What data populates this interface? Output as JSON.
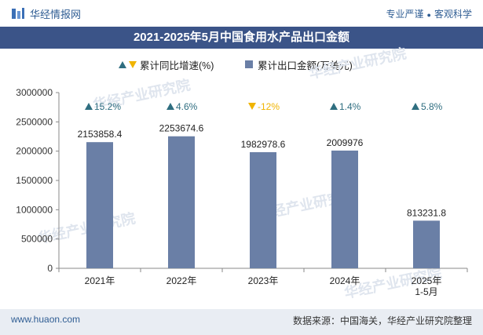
{
  "header": {
    "brand": "华经情报网",
    "slogan_left": "专业严谨",
    "slogan_right": "客观科学"
  },
  "footer": {
    "website": "www.huaon.com",
    "source": "数据来源：中国海关，华经产业研究院整理"
  },
  "watermark": "华经产业研究院",
  "colors": {
    "bar": "#6a7fa6",
    "up": "#2f6e80",
    "down": "#f0b400",
    "title_bg": "#3b5488"
  },
  "chart_data": {
    "type": "bar",
    "title": "2021-2025年5月中国食用水产品出口金额",
    "categories": [
      [
        "2021年"
      ],
      [
        "2022年"
      ],
      [
        "2023年"
      ],
      [
        "2024年"
      ],
      [
        "2025年",
        "1-5月"
      ]
    ],
    "series": [
      {
        "name": "累计出口金额(万美元)",
        "values": [
          2153858.4,
          2253674.6,
          1982978.6,
          2009976,
          813231.8
        ],
        "value_labels": [
          "2153858.4",
          "2253674.6",
          "1982978.6",
          "2009976",
          "813231.8"
        ]
      },
      {
        "name": "累计同比增速(%)",
        "values": [
          15.2,
          4.6,
          -12,
          1.4,
          5.8
        ],
        "labels": [
          "15.2%",
          "4.6%",
          "-12%",
          "1.4%",
          "5.8%"
        ]
      }
    ],
    "yaxis": {
      "min": 0,
      "max": 3000000,
      "ticks": [
        0,
        500000,
        1000000,
        1500000,
        2000000,
        2500000,
        3000000
      ],
      "tick_labels": [
        "0",
        "500000",
        "1000000",
        "1500000",
        "2000000",
        "2500000",
        "3000000"
      ]
    }
  }
}
